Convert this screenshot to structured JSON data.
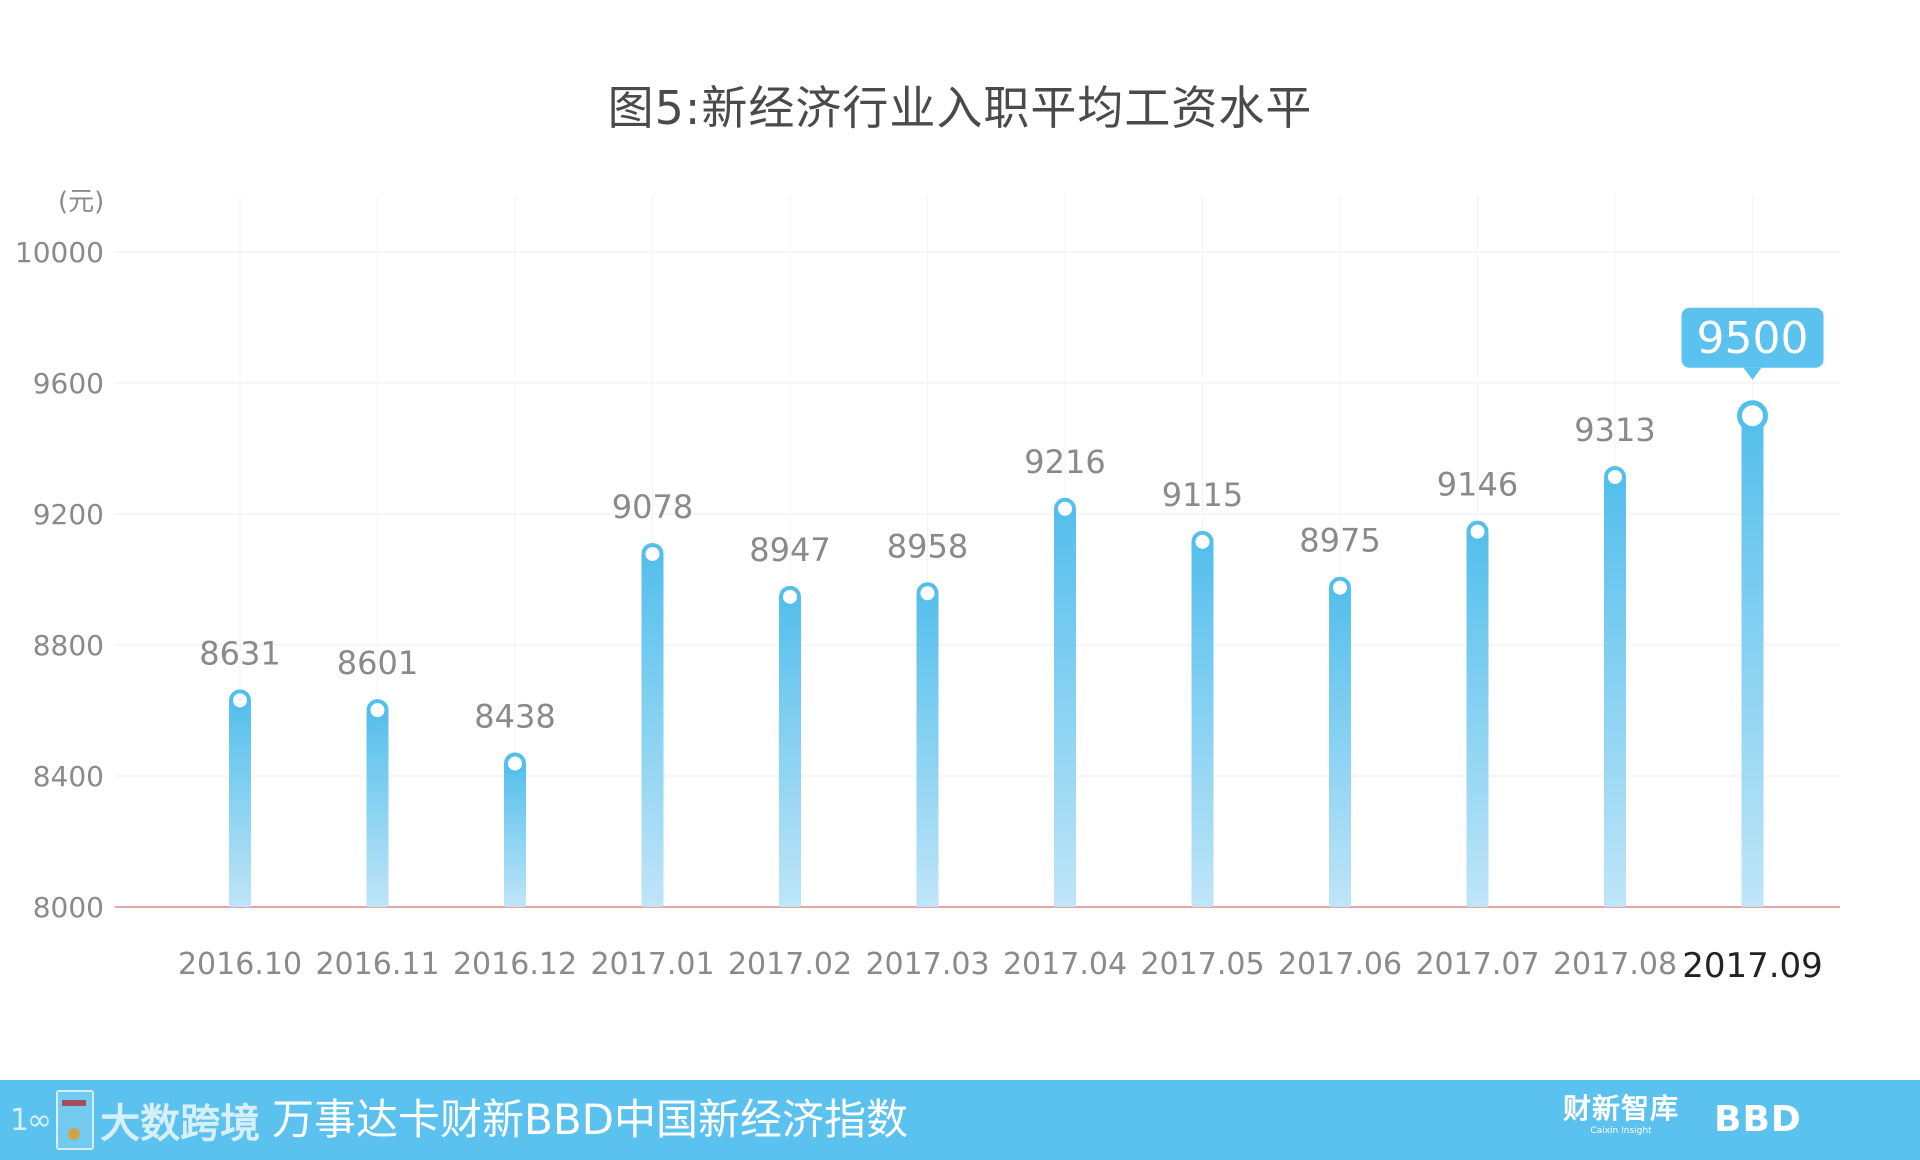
{
  "chart_data": {
    "type": "bar",
    "title": "图5:新经济行业入职平均工资水平",
    "unit_label": "(元)",
    "categories": [
      "2016.10",
      "2016.11",
      "2016.12",
      "2017.01",
      "2017.02",
      "2017.03",
      "2017.04",
      "2017.05",
      "2017.06",
      "2017.07",
      "2017.08",
      "2017.09"
    ],
    "values": [
      8631,
      8601,
      8438,
      9078,
      8947,
      8958,
      9216,
      9115,
      8975,
      9146,
      9313,
      9500
    ],
    "ylim": [
      8000,
      10000
    ],
    "yticks": [
      8000,
      8400,
      8800,
      9200,
      9600,
      10000
    ],
    "highlight_index": 11,
    "grid": true,
    "colors": {
      "bar_top": "#54bfec",
      "bar_bottom": "#bfe5f8",
      "label": "#8a8a8a",
      "highlight_label": "#222222",
      "callout": "#5bc1ee",
      "baseline": "#d98c8c",
      "grid": "#eeeeee"
    }
  },
  "footer": {
    "logo_mark": "1∞",
    "logo_text": "大数跨境",
    "index_name": "万事达卡财新BBD中国新经济指数",
    "brand_cn": "财新智库",
    "brand_en": "Caixin Insight",
    "bbd": "BBD",
    "bg_color": "#5bc1ee"
  }
}
